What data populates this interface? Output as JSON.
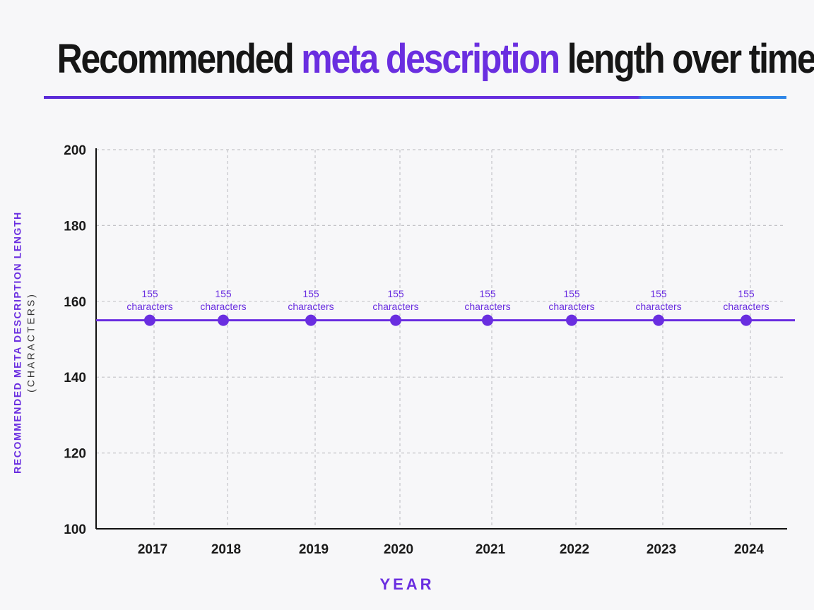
{
  "title": {
    "part1": "Recommended ",
    "highlight": "meta description",
    "part2": " length over time"
  },
  "colors": {
    "accent": "#6a2ee0",
    "accent_blue": "#2f86e8",
    "text": "#1a1a1a",
    "grid": "#c4c4c8"
  },
  "chart_data": {
    "type": "line",
    "title": "Recommended meta description length over time",
    "xlabel": "YEAR",
    "ylabel": "RECOMMENDED META DESCRIPTION LENGTH",
    "ylabel_sub": "(CHARACTERS)",
    "categories": [
      "2017",
      "2018",
      "2019",
      "2020",
      "2021",
      "2022",
      "2023",
      "2024"
    ],
    "series": [
      {
        "values": [
          155,
          155,
          155,
          155,
          155,
          155,
          155,
          155
        ]
      }
    ],
    "data_labels": [
      [
        "155",
        "characters"
      ],
      [
        "155",
        "characters"
      ],
      [
        "155",
        "characters"
      ],
      [
        "155",
        "characters"
      ],
      [
        "155",
        "characters"
      ],
      [
        "155",
        "characters"
      ],
      [
        "155",
        "characters"
      ],
      [
        "155",
        "characters"
      ]
    ],
    "yticks": [
      100,
      120,
      140,
      160,
      180,
      200
    ],
    "ylim": [
      100,
      200
    ],
    "grid": true,
    "legend": "none"
  }
}
